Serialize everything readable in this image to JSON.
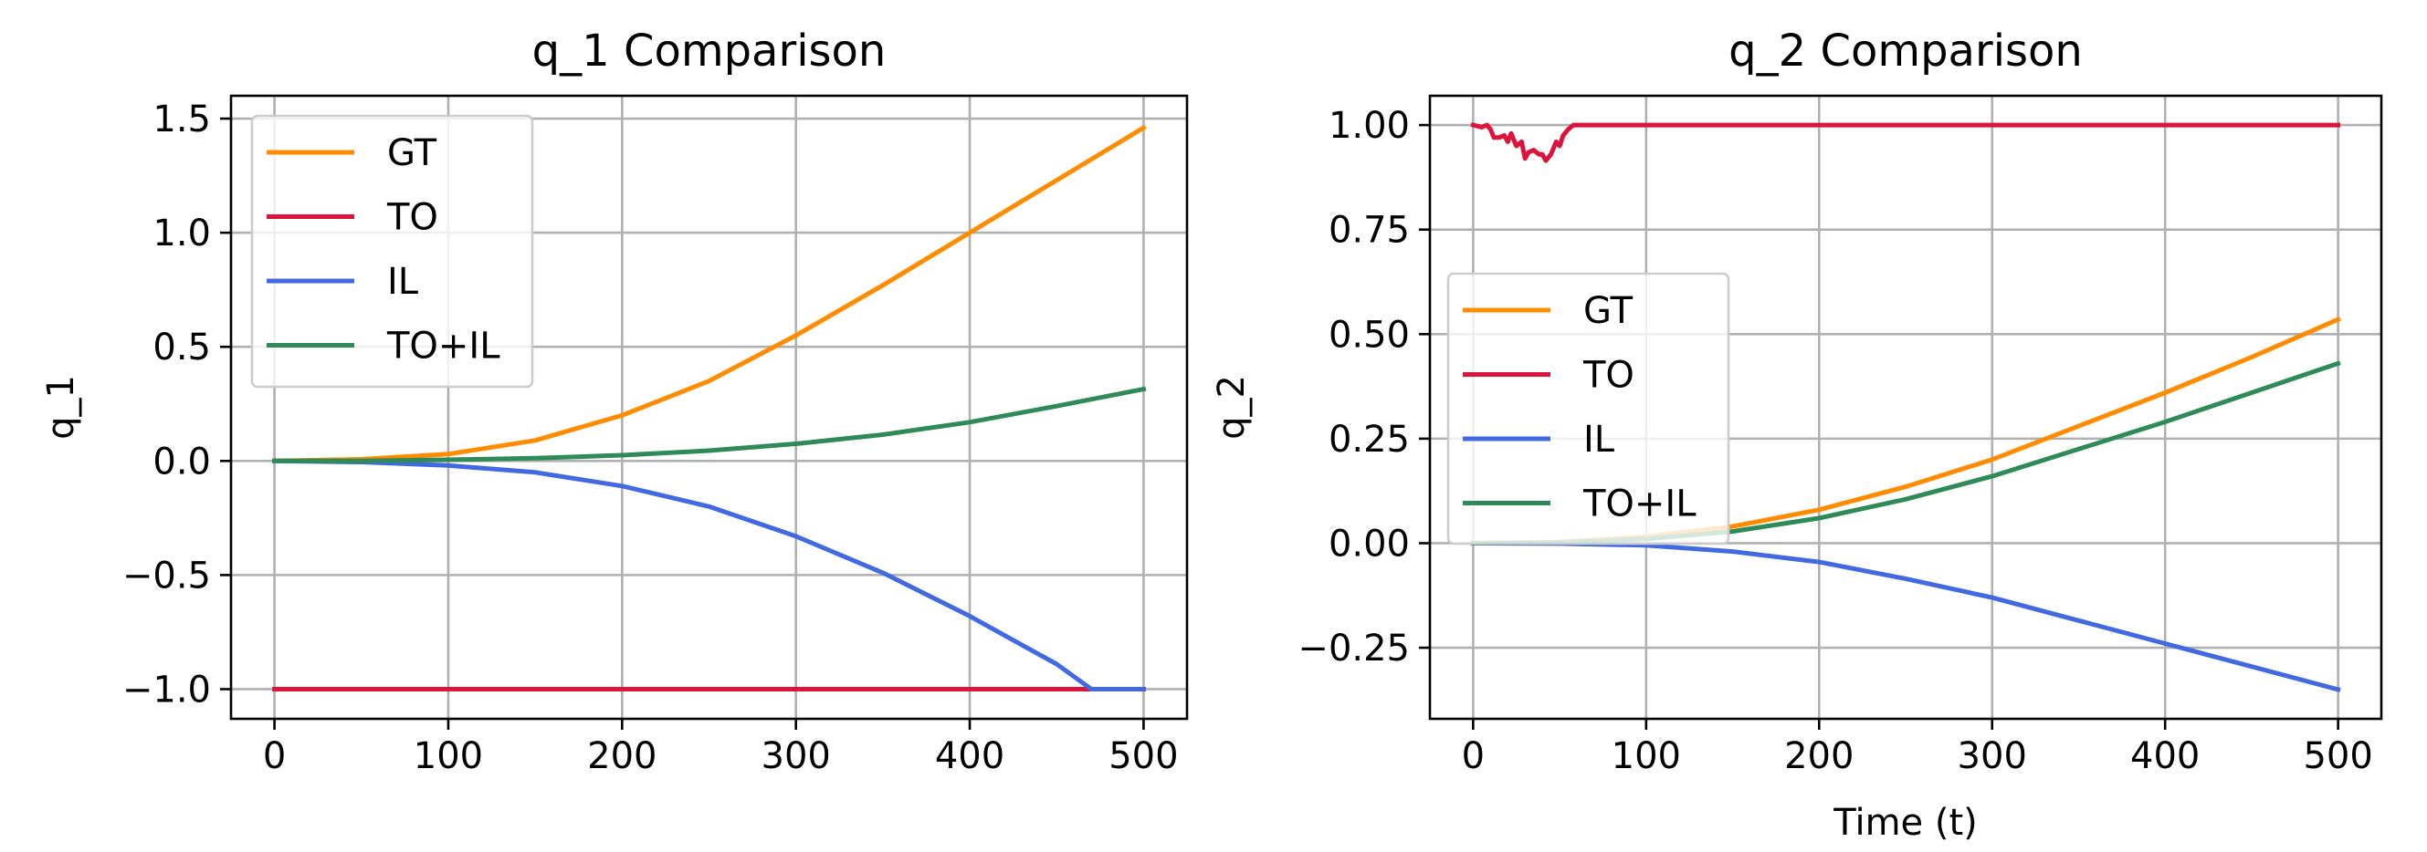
{
  "chart_data": [
    {
      "type": "line",
      "title": "q_1 Comparison",
      "xlabel": "",
      "ylabel": "q_1",
      "xlim": [
        -25,
        525
      ],
      "ylim": [
        -1.13,
        1.6
      ],
      "xticks": [
        0,
        100,
        200,
        300,
        400,
        500
      ],
      "xtick_labels": [
        "0",
        "100",
        "200",
        "300",
        "400",
        "500"
      ],
      "yticks": [
        -1.0,
        -0.5,
        0.0,
        0.5,
        1.0,
        1.5
      ],
      "ytick_labels": [
        "−1.0",
        "−0.5",
        "0.0",
        "0.5",
        "1.0",
        "1.5"
      ],
      "grid": true,
      "legend_position": "upper-left",
      "series": [
        {
          "name": "GT",
          "color": "#ff8c00",
          "x": [
            0,
            50,
            100,
            150,
            200,
            250,
            300,
            350,
            400,
            450,
            500
          ],
          "y": [
            0.0,
            0.007,
            0.03,
            0.09,
            0.2,
            0.35,
            0.55,
            0.77,
            1.0,
            1.23,
            1.46
          ]
        },
        {
          "name": "TO",
          "color": "#dc143c",
          "x": [
            0,
            500
          ],
          "y": [
            -1.0,
            -1.0
          ]
        },
        {
          "name": "IL",
          "color": "#4169e1",
          "x": [
            0,
            50,
            100,
            150,
            200,
            250,
            300,
            350,
            400,
            450,
            470,
            500
          ],
          "y": [
            0.0,
            -0.005,
            -0.02,
            -0.05,
            -0.11,
            -0.2,
            -0.33,
            -0.49,
            -0.68,
            -0.89,
            -1.0,
            -1.0
          ]
        },
        {
          "name": "TO+IL",
          "color": "#2e8b57",
          "x": [
            0,
            50,
            100,
            150,
            200,
            250,
            300,
            350,
            400,
            450,
            500
          ],
          "y": [
            0.0,
            0.0,
            0.005,
            0.012,
            0.025,
            0.045,
            0.075,
            0.115,
            0.17,
            0.24,
            0.315
          ]
        }
      ]
    },
    {
      "type": "line",
      "title": "q_2 Comparison",
      "xlabel": "Time (t)",
      "ylabel": "q_2",
      "xlim": [
        -25,
        525
      ],
      "ylim": [
        -0.42,
        1.07
      ],
      "xticks": [
        0,
        100,
        200,
        300,
        400,
        500
      ],
      "xtick_labels": [
        "0",
        "100",
        "200",
        "300",
        "400",
        "500"
      ],
      "yticks": [
        -0.25,
        0.0,
        0.25,
        0.5,
        0.75,
        1.0
      ],
      "ytick_labels": [
        "−0.25",
        "0.00",
        "0.25",
        "0.50",
        "0.75",
        "1.00"
      ],
      "grid": true,
      "legend_position": "center-left",
      "series": [
        {
          "name": "GT",
          "color": "#ff8c00",
          "x": [
            0,
            50,
            100,
            150,
            200,
            250,
            300,
            350,
            400,
            450,
            500
          ],
          "y": [
            0.0,
            0.003,
            0.015,
            0.04,
            0.08,
            0.135,
            0.2,
            0.28,
            0.36,
            0.445,
            0.535
          ]
        },
        {
          "name": "TO",
          "color": "#dc143c",
          "x": [
            0,
            5,
            8,
            10,
            12,
            15,
            18,
            20,
            22,
            25,
            28,
            30,
            32,
            35,
            38,
            40,
            42,
            45,
            48,
            50,
            52,
            55,
            58,
            500
          ],
          "y": [
            1.0,
            0.995,
            1.0,
            0.99,
            0.97,
            0.97,
            0.975,
            0.96,
            0.98,
            0.95,
            0.96,
            0.92,
            0.935,
            0.94,
            0.93,
            0.93,
            0.915,
            0.93,
            0.96,
            0.95,
            0.975,
            0.99,
            1.0,
            1.0
          ]
        },
        {
          "name": "IL",
          "color": "#4169e1",
          "x": [
            0,
            50,
            100,
            150,
            200,
            250,
            300,
            350,
            400,
            450,
            500
          ],
          "y": [
            0.0,
            -0.001,
            -0.005,
            -0.02,
            -0.045,
            -0.085,
            -0.13,
            -0.185,
            -0.24,
            -0.295,
            -0.35
          ]
        },
        {
          "name": "TO+IL",
          "color": "#2e8b57",
          "x": [
            0,
            50,
            100,
            150,
            200,
            250,
            300,
            350,
            400,
            450,
            500
          ],
          "y": [
            0.0,
            0.002,
            0.01,
            0.028,
            0.06,
            0.105,
            0.16,
            0.225,
            0.29,
            0.36,
            0.43
          ]
        }
      ]
    }
  ]
}
